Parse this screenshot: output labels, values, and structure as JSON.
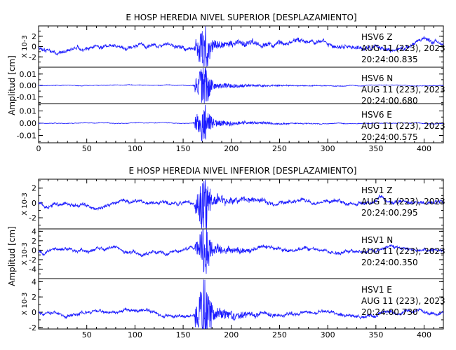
{
  "chart_data": [
    {
      "type": "line",
      "title": "E HOSP HEREDIA NIVEL SUPERIOR [DESPLAZAMIENTO]",
      "ylabel": "Amplitud [cm]",
      "xlim": [
        0,
        420
      ],
      "x_ticks": [
        "0",
        "50",
        "100",
        "150",
        "200",
        "250",
        "300",
        "350",
        "400"
      ],
      "grid": false,
      "color": "#1a1aff",
      "panels": [
        {
          "station": "HSV6",
          "component": "Z",
          "date": "AUG 11 (223), 2023",
          "time": "20:24:00.835",
          "scale_label": "X 10-3",
          "ylim": [
            -4,
            4
          ],
          "y_ticks": [
            "2",
            "0",
            "-2"
          ],
          "y_tick_values": [
            2,
            0,
            -2
          ],
          "noise": 0.9,
          "peak": 3.6,
          "seed": 11
        },
        {
          "station": "HSV6",
          "component": "N",
          "date": "AUG 11 (223), 2023",
          "time": "20:24:00.680",
          "scale_label": "",
          "ylim": [
            -0.016,
            0.016
          ],
          "y_ticks": [
            "0.01",
            "0.00",
            "-0.01"
          ],
          "y_tick_values": [
            0.01,
            0,
            -0.01
          ],
          "noise": 0.0006,
          "peak": 0.015,
          "seed": 23
        },
        {
          "station": "HSV6",
          "component": "E",
          "date": "AUG 11 (223), 2023",
          "time": "20:24:00.575",
          "scale_label": "",
          "ylim": [
            -0.016,
            0.016
          ],
          "y_ticks": [
            "0.01",
            "0.00",
            "-0.01"
          ],
          "y_tick_values": [
            0.01,
            0,
            -0.01
          ],
          "noise": 0.0006,
          "peak": 0.014,
          "seed": 37
        }
      ]
    },
    {
      "type": "line",
      "title": "E HOSP HEREDIA NIVEL INFERIOR [DESPLAZAMIENTO]",
      "ylabel": "Amplitud [cm]",
      "xlim": [
        0,
        420
      ],
      "x_ticks": [
        "50",
        "100",
        "150",
        "200",
        "250",
        "300",
        "350",
        "400"
      ],
      "grid": false,
      "color": "#1a1aff",
      "panels": [
        {
          "station": "HSV1",
          "component": "Z",
          "date": "AUG 11 (223), 2023",
          "time": "20:24:00.295",
          "scale_label": "X 10-3",
          "ylim": [
            -3.5,
            3.2
          ],
          "y_ticks": [
            "2",
            "0",
            "-2"
          ],
          "y_tick_values": [
            2,
            0,
            -2
          ],
          "noise": 0.55,
          "peak": 3.1,
          "seed": 51
        },
        {
          "station": "HSV1",
          "component": "N",
          "date": "AUG 11 (223), 2023",
          "time": "20:24:00.350",
          "scale_label": "X 10-3",
          "ylim": [
            -6,
            4.5
          ],
          "y_ticks": [
            "4",
            "2",
            "0",
            "-2",
            "-4"
          ],
          "y_tick_values": [
            4,
            2,
            0,
            -2,
            -4
          ],
          "noise": 0.8,
          "peak": 4.4,
          "seed": 67
        },
        {
          "station": "HSV1",
          "component": "E",
          "date": "AUG 11 (223), 2023",
          "time": "20:24:00.730",
          "scale_label": "X 10-3",
          "ylim": [
            -2.2,
            4.4
          ],
          "y_ticks": [
            "4",
            "2",
            "0",
            "-2"
          ],
          "y_tick_values": [
            4,
            2,
            0,
            -2
          ],
          "noise": 0.5,
          "peak": 3.8,
          "seed": 83
        }
      ]
    }
  ]
}
